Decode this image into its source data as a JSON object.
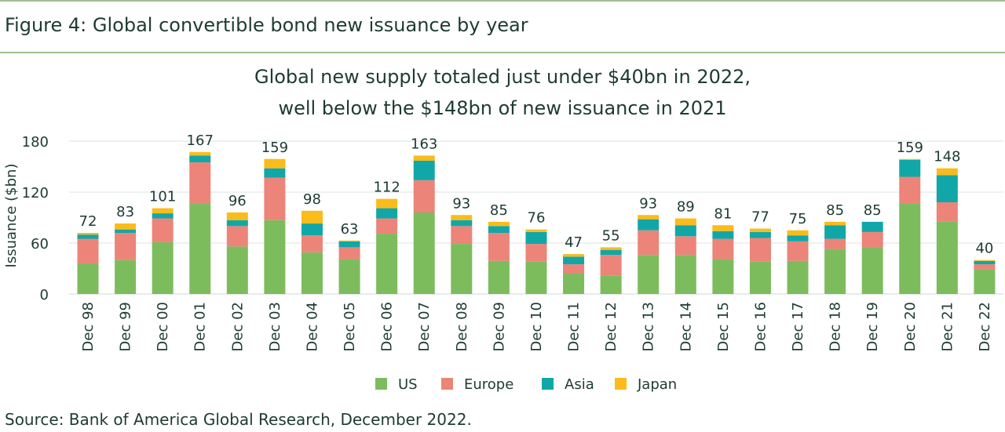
{
  "figure_title": "Figure 4: Global convertible bond new issuance by year",
  "source": "Source: Bank of America Global Research, December 2022.",
  "colors": {
    "US": "#7dbc5d",
    "Europe": "#ec8479",
    "Asia": "#11a7a8",
    "Japan": "#fbbb1a",
    "rule": "#9fbe8e",
    "grid": "#dde3e0"
  },
  "chart_data": {
    "type": "bar",
    "stacked": true,
    "title": "Global new supply totaled just under $40bn in 2022,",
    "subtitle": "well below the $148bn of new issuance in 2021",
    "xlabel": "",
    "ylabel": "Issuance ($bn)",
    "ylim": [
      0,
      180
    ],
    "yticks": [
      0,
      60,
      120,
      180
    ],
    "grid": true,
    "legend_position": "bottom",
    "categories": [
      "Dec 98",
      "Dec 99",
      "Dec 00",
      "Dec 01",
      "Dec 02",
      "Dec 03",
      "Dec 04",
      "Dec 05",
      "Dec 06",
      "Dec 07",
      "Dec 08",
      "Dec 09",
      "Dec 10",
      "Dec 11",
      "Dec 12",
      "Dec 13",
      "Dec 14",
      "Dec 15",
      "Dec 16",
      "Dec 17",
      "Dec 18",
      "Dec 19",
      "Dec 20",
      "Dec 21",
      "Dec 22"
    ],
    "totals": [
      "72",
      "83",
      "101",
      "167",
      "96",
      "159",
      "98",
      "63",
      "112",
      "163",
      "93",
      "85",
      "76",
      "47",
      "55",
      "93",
      "89",
      "81",
      "77",
      "75",
      "85",
      "85",
      "159",
      "148",
      "40"
    ],
    "series": [
      {
        "name": "US",
        "values": [
          36,
          40,
          61,
          107,
          56,
          87,
          49,
          41,
          71,
          96,
          59,
          39,
          38,
          24,
          22,
          46,
          46,
          41,
          38,
          39,
          53,
          55,
          107,
          85,
          29
        ]
      },
      {
        "name": "Europe",
        "values": [
          29,
          32,
          28,
          48,
          24,
          50,
          20,
          14,
          18,
          38,
          21,
          33,
          21,
          11,
          24,
          29,
          22,
          24,
          28,
          23,
          12,
          18,
          31,
          23,
          6
        ]
      },
      {
        "name": "Asia",
        "values": [
          5,
          4,
          6,
          8,
          7,
          11,
          14,
          7,
          12,
          23,
          7,
          8,
          14,
          9,
          6,
          13,
          13,
          9,
          7,
          7,
          16,
          12,
          20,
          32,
          4
        ]
      },
      {
        "name": "Japan",
        "values": [
          2,
          7,
          6,
          4,
          9,
          11,
          15,
          1,
          11,
          6,
          6,
          5,
          3,
          3,
          3,
          5,
          8,
          7,
          4,
          6,
          4,
          0,
          1,
          8,
          1
        ]
      }
    ]
  }
}
